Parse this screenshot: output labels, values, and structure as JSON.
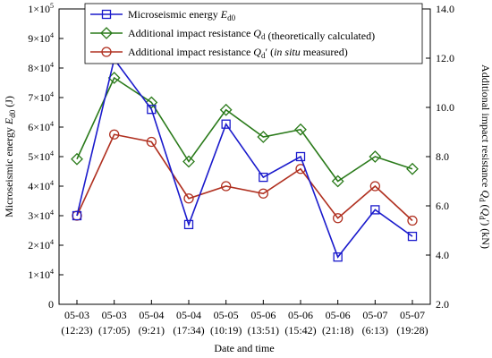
{
  "chart_data": {
    "type": "line",
    "xlabel": "Date and time",
    "ylabel_left": "Microseismic energy E_d0 (J)",
    "ylabel_right": "Additional impact resistance Q_d (Q_d') (kN)",
    "categories": [
      {
        "date": "05-03",
        "time": "(12:23)"
      },
      {
        "date": "05-03",
        "time": "(17:05)"
      },
      {
        "date": "05-04",
        "time": "(9:21)"
      },
      {
        "date": "05-04",
        "time": "(17:34)"
      },
      {
        "date": "05-05",
        "time": "(10:19)"
      },
      {
        "date": "05-06",
        "time": "(13:51)"
      },
      {
        "date": "05-06",
        "time": "(15:42)"
      },
      {
        "date": "05-06",
        "time": "(21:18)"
      },
      {
        "date": "05-07",
        "time": "(6:13)"
      },
      {
        "date": "05-07",
        "time": "(19:28)"
      }
    ],
    "y_left": {
      "min": 0,
      "max": 100000,
      "ticks": [
        {
          "mant": "",
          "exp": "",
          "label": "0"
        },
        {
          "mant": "1×10",
          "exp": "4"
        },
        {
          "mant": "2×10",
          "exp": "4"
        },
        {
          "mant": "3×10",
          "exp": "4"
        },
        {
          "mant": "4×10",
          "exp": "4"
        },
        {
          "mant": "5×10",
          "exp": "4"
        },
        {
          "mant": "6×10",
          "exp": "4"
        },
        {
          "mant": "7×10",
          "exp": "4"
        },
        {
          "mant": "8×10",
          "exp": "4"
        },
        {
          "mant": "9×10",
          "exp": "4"
        },
        {
          "mant": "1×10",
          "exp": "5"
        }
      ]
    },
    "y_right": {
      "min": 2.0,
      "max": 14.0,
      "ticks": [
        "2.0",
        "4.0",
        "6.0",
        "8.0",
        "10.0",
        "12.0",
        "14.0"
      ]
    },
    "series": [
      {
        "name_parts": [
          "Microseismic energy ",
          "E",
          "d0",
          "",
          ""
        ],
        "axis": "left",
        "color": "#1a1acc",
        "marker": "square",
        "values": [
          30000,
          83000,
          66000,
          27000,
          61000,
          43000,
          50000,
          16000,
          32000,
          23000
        ]
      },
      {
        "name_parts": [
          "Additional impact resistance ",
          "Q",
          "d",
          "",
          " (theoretically calculated)"
        ],
        "axis": "right",
        "color": "#2a7a1a",
        "marker": "diamond",
        "values": [
          7.9,
          11.2,
          10.2,
          7.8,
          9.9,
          8.8,
          9.1,
          7.0,
          8.0,
          7.5
        ]
      },
      {
        "name_parts": [
          "Additional impact resistance ",
          "Q",
          "d",
          "′ (",
          "in situ measured)"
        ],
        "axis": "right",
        "color": "#b03020",
        "marker": "circle",
        "values": [
          5.6,
          8.9,
          8.6,
          6.3,
          6.8,
          6.5,
          7.5,
          5.5,
          6.8,
          5.4
        ]
      }
    ]
  }
}
